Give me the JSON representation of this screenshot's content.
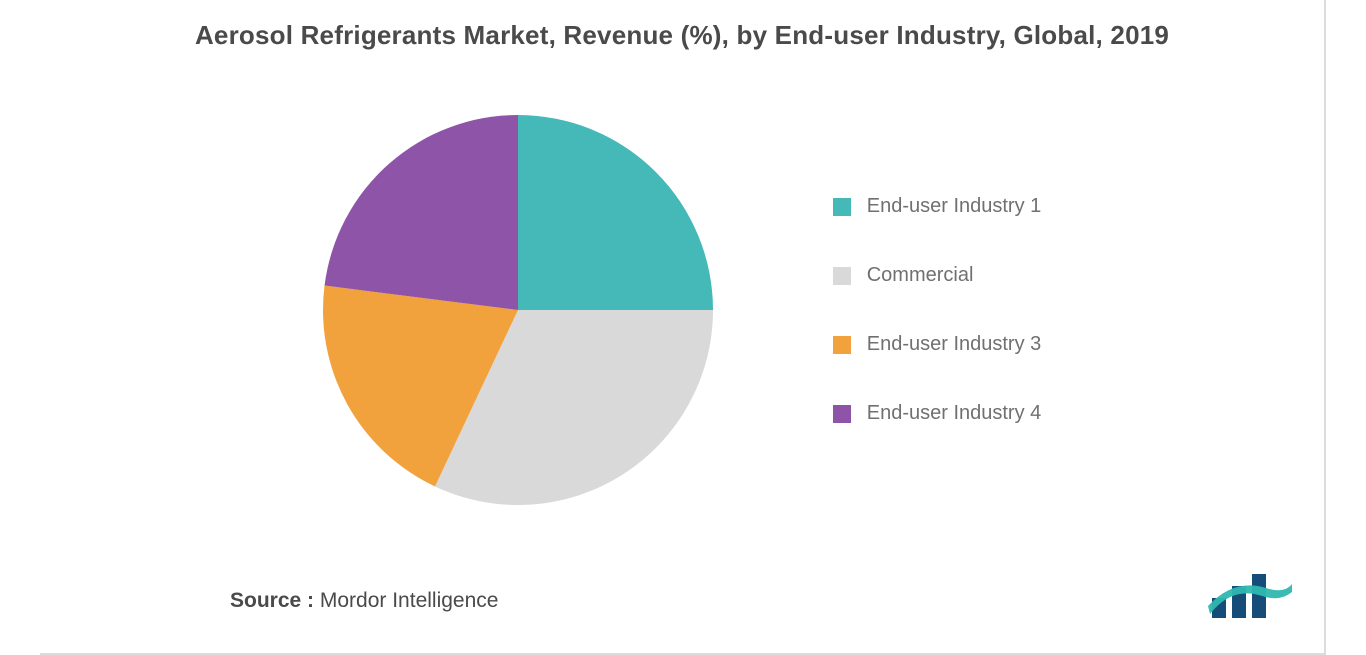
{
  "title": {
    "text": "Aerosol Refrigerants Market, Revenue (%), by End-user Industry, Global, 2019",
    "fontsize": 26,
    "color": "#4a4a4a",
    "weight": 600
  },
  "chart": {
    "type": "pie",
    "radius": 195,
    "start_angle_deg": 0,
    "direction": "clockwise",
    "background_color": "#ffffff",
    "slices": [
      {
        "label": "End-user Industry 1",
        "value": 25,
        "color": "#45b8b8"
      },
      {
        "label": "Commercial",
        "value": 32,
        "color": "#d9d9d9"
      },
      {
        "label": "End-user Industry 3",
        "value": 20,
        "color": "#f2a23c"
      },
      {
        "label": "End-user Industry 4",
        "value": 23,
        "color": "#8e54a8"
      }
    ]
  },
  "legend": {
    "fontsize": 20,
    "color": "#707070",
    "item_gap": 46,
    "swatch_size": 18
  },
  "source": {
    "label": "Source :",
    "value": "Mordor Intelligence",
    "fontsize": 21,
    "color": "#4a4a4a"
  },
  "frame": {
    "border_color": "#dcdcdc",
    "border_width": 2
  },
  "logo": {
    "bar_color": "#154d78",
    "wave_color": "#2fb7b0"
  }
}
